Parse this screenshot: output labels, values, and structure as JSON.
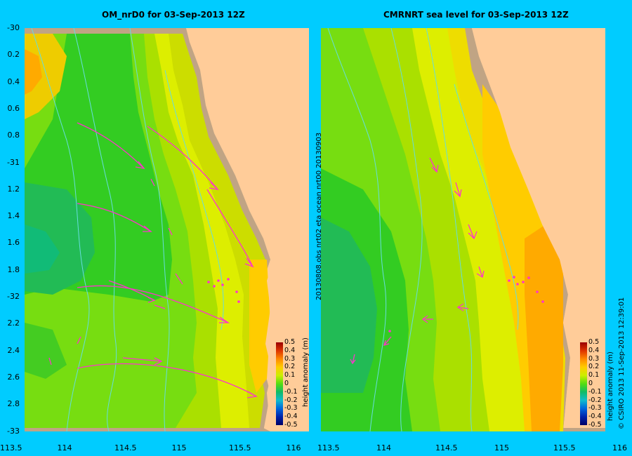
{
  "left_panel": {
    "title": "OM_nrD0  for 03-Sep-2013 12Z",
    "y_ticks": [
      "-30",
      "0.2",
      "0.4",
      "0.6",
      "0.8",
      "-31",
      "1.2",
      "1.4",
      "1.6",
      "1.8",
      "-32",
      "2.2",
      "2.4",
      "2.6",
      "2.8",
      "-33"
    ],
    "x_ticks": [
      "113.5",
      "114",
      "114.5",
      "115",
      "115.5",
      "116"
    ],
    "side_text": "20130808.obs  nrt02  eta      ocean  nrt00  20130903"
  },
  "right_panel": {
    "title": "CMRNRT sea level  for 03-Sep-2013 12Z",
    "x_ticks": [
      "113.5",
      "114",
      "114.5",
      "115",
      "115.5",
      "116"
    ],
    "side_text": "© CSIRO 2013    11-Sep-2013 12:39:01"
  },
  "colorbar": {
    "label": "height anomaly (m)",
    "ticks": [
      "0.5",
      "0.4",
      "0.3",
      "0.2",
      "0.1",
      "0",
      "-0.1",
      "-0.2",
      "-0.3",
      "-0.4",
      "-0.5"
    ]
  },
  "colors": {
    "background": "#00ccff",
    "land": "#ffcc99",
    "shelf": "#c8a888",
    "arrow": "#ff33cc",
    "bathymetry": "#66dddd"
  },
  "map_extent": {
    "lon": [
      113.5,
      116
    ],
    "lat": [
      -33,
      -30
    ]
  }
}
